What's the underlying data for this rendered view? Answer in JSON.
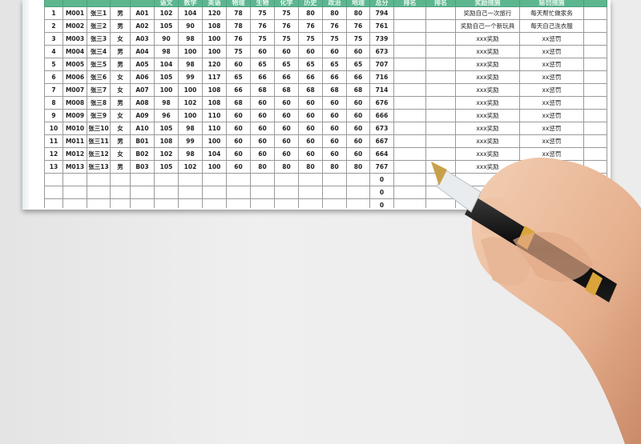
{
  "table": {
    "headers": [
      "",
      "",
      "",
      "",
      "",
      "语文",
      "数学",
      "英语",
      "物理",
      "生物",
      "化学",
      "历史",
      "政治",
      "地理",
      "总分",
      "排名",
      "排名",
      "奖励措施",
      "惩罚措施",
      ""
    ],
    "rows": [
      [
        "1",
        "M001",
        "张三1",
        "男",
        "A01",
        "102",
        "104",
        "120",
        "78",
        "75",
        "75",
        "80",
        "80",
        "80",
        "794",
        "",
        "",
        "奖励自己一次旅行",
        "每天帮忙做家务",
        ""
      ],
      [
        "2",
        "M002",
        "张三2",
        "男",
        "A02",
        "105",
        "90",
        "108",
        "78",
        "76",
        "76",
        "76",
        "76",
        "76",
        "761",
        "",
        "",
        "奖励自己一个新玩具",
        "每天自己洗衣服",
        ""
      ],
      [
        "3",
        "M003",
        "张三3",
        "女",
        "A03",
        "90",
        "98",
        "100",
        "76",
        "75",
        "75",
        "75",
        "75",
        "75",
        "739",
        "",
        "",
        "xxx奖励",
        "xx惩罚",
        ""
      ],
      [
        "4",
        "M004",
        "张三4",
        "男",
        "A04",
        "98",
        "100",
        "100",
        "75",
        "60",
        "60",
        "60",
        "60",
        "60",
        "673",
        "",
        "",
        "xxx奖励",
        "xx惩罚",
        ""
      ],
      [
        "5",
        "M005",
        "张三5",
        "男",
        "A05",
        "104",
        "98",
        "120",
        "60",
        "65",
        "65",
        "65",
        "65",
        "65",
        "707",
        "",
        "",
        "xxx奖励",
        "xx惩罚",
        ""
      ],
      [
        "6",
        "M006",
        "张三6",
        "女",
        "A06",
        "105",
        "99",
        "117",
        "65",
        "66",
        "66",
        "66",
        "66",
        "66",
        "716",
        "",
        "",
        "xxx奖励",
        "xx惩罚",
        ""
      ],
      [
        "7",
        "M007",
        "张三7",
        "女",
        "A07",
        "100",
        "100",
        "108",
        "66",
        "68",
        "68",
        "68",
        "68",
        "68",
        "714",
        "",
        "",
        "xxx奖励",
        "xx惩罚",
        ""
      ],
      [
        "8",
        "M008",
        "张三8",
        "男",
        "A08",
        "98",
        "102",
        "108",
        "68",
        "60",
        "60",
        "60",
        "60",
        "60",
        "676",
        "",
        "",
        "xxx奖励",
        "xx惩罚",
        ""
      ],
      [
        "9",
        "M009",
        "张三9",
        "女",
        "A09",
        "96",
        "100",
        "110",
        "60",
        "60",
        "60",
        "60",
        "60",
        "60",
        "666",
        "",
        "",
        "xxx奖励",
        "xx惩罚",
        ""
      ],
      [
        "10",
        "M010",
        "张三10",
        "女",
        "A10",
        "105",
        "98",
        "110",
        "60",
        "60",
        "60",
        "60",
        "60",
        "60",
        "673",
        "",
        "",
        "xxx奖励",
        "xx惩罚",
        ""
      ],
      [
        "11",
        "M011",
        "张三11",
        "男",
        "B01",
        "108",
        "99",
        "100",
        "60",
        "60",
        "60",
        "60",
        "60",
        "60",
        "667",
        "",
        "",
        "xxx奖励",
        "xx惩罚",
        ""
      ],
      [
        "12",
        "M012",
        "张三12",
        "女",
        "B02",
        "102",
        "98",
        "104",
        "60",
        "60",
        "60",
        "60",
        "60",
        "60",
        "664",
        "",
        "",
        "xxx奖励",
        "xx惩罚",
        ""
      ],
      [
        "13",
        "M013",
        "张三13",
        "男",
        "B03",
        "105",
        "102",
        "100",
        "60",
        "80",
        "80",
        "80",
        "80",
        "80",
        "767",
        "",
        "",
        "xxx奖励",
        "",
        ""
      ],
      [
        "",
        "",
        "",
        "",
        "",
        "",
        "",
        "",
        "",
        "",
        "",
        "",
        "",
        "",
        "0",
        "",
        "",
        "",
        "",
        ""
      ],
      [
        "",
        "",
        "",
        "",
        "",
        "",
        "",
        "",
        "",
        "",
        "",
        "",
        "",
        "",
        "0",
        "",
        "",
        "",
        "",
        ""
      ],
      [
        "",
        "",
        "",
        "",
        "",
        "",
        "",
        "",
        "",
        "",
        "",
        "",
        "",
        "",
        "0",
        "",
        "",
        "",
        "",
        ""
      ]
    ]
  },
  "colors": {
    "header_bg": "#5cb68e",
    "background": "#ebebeb"
  }
}
